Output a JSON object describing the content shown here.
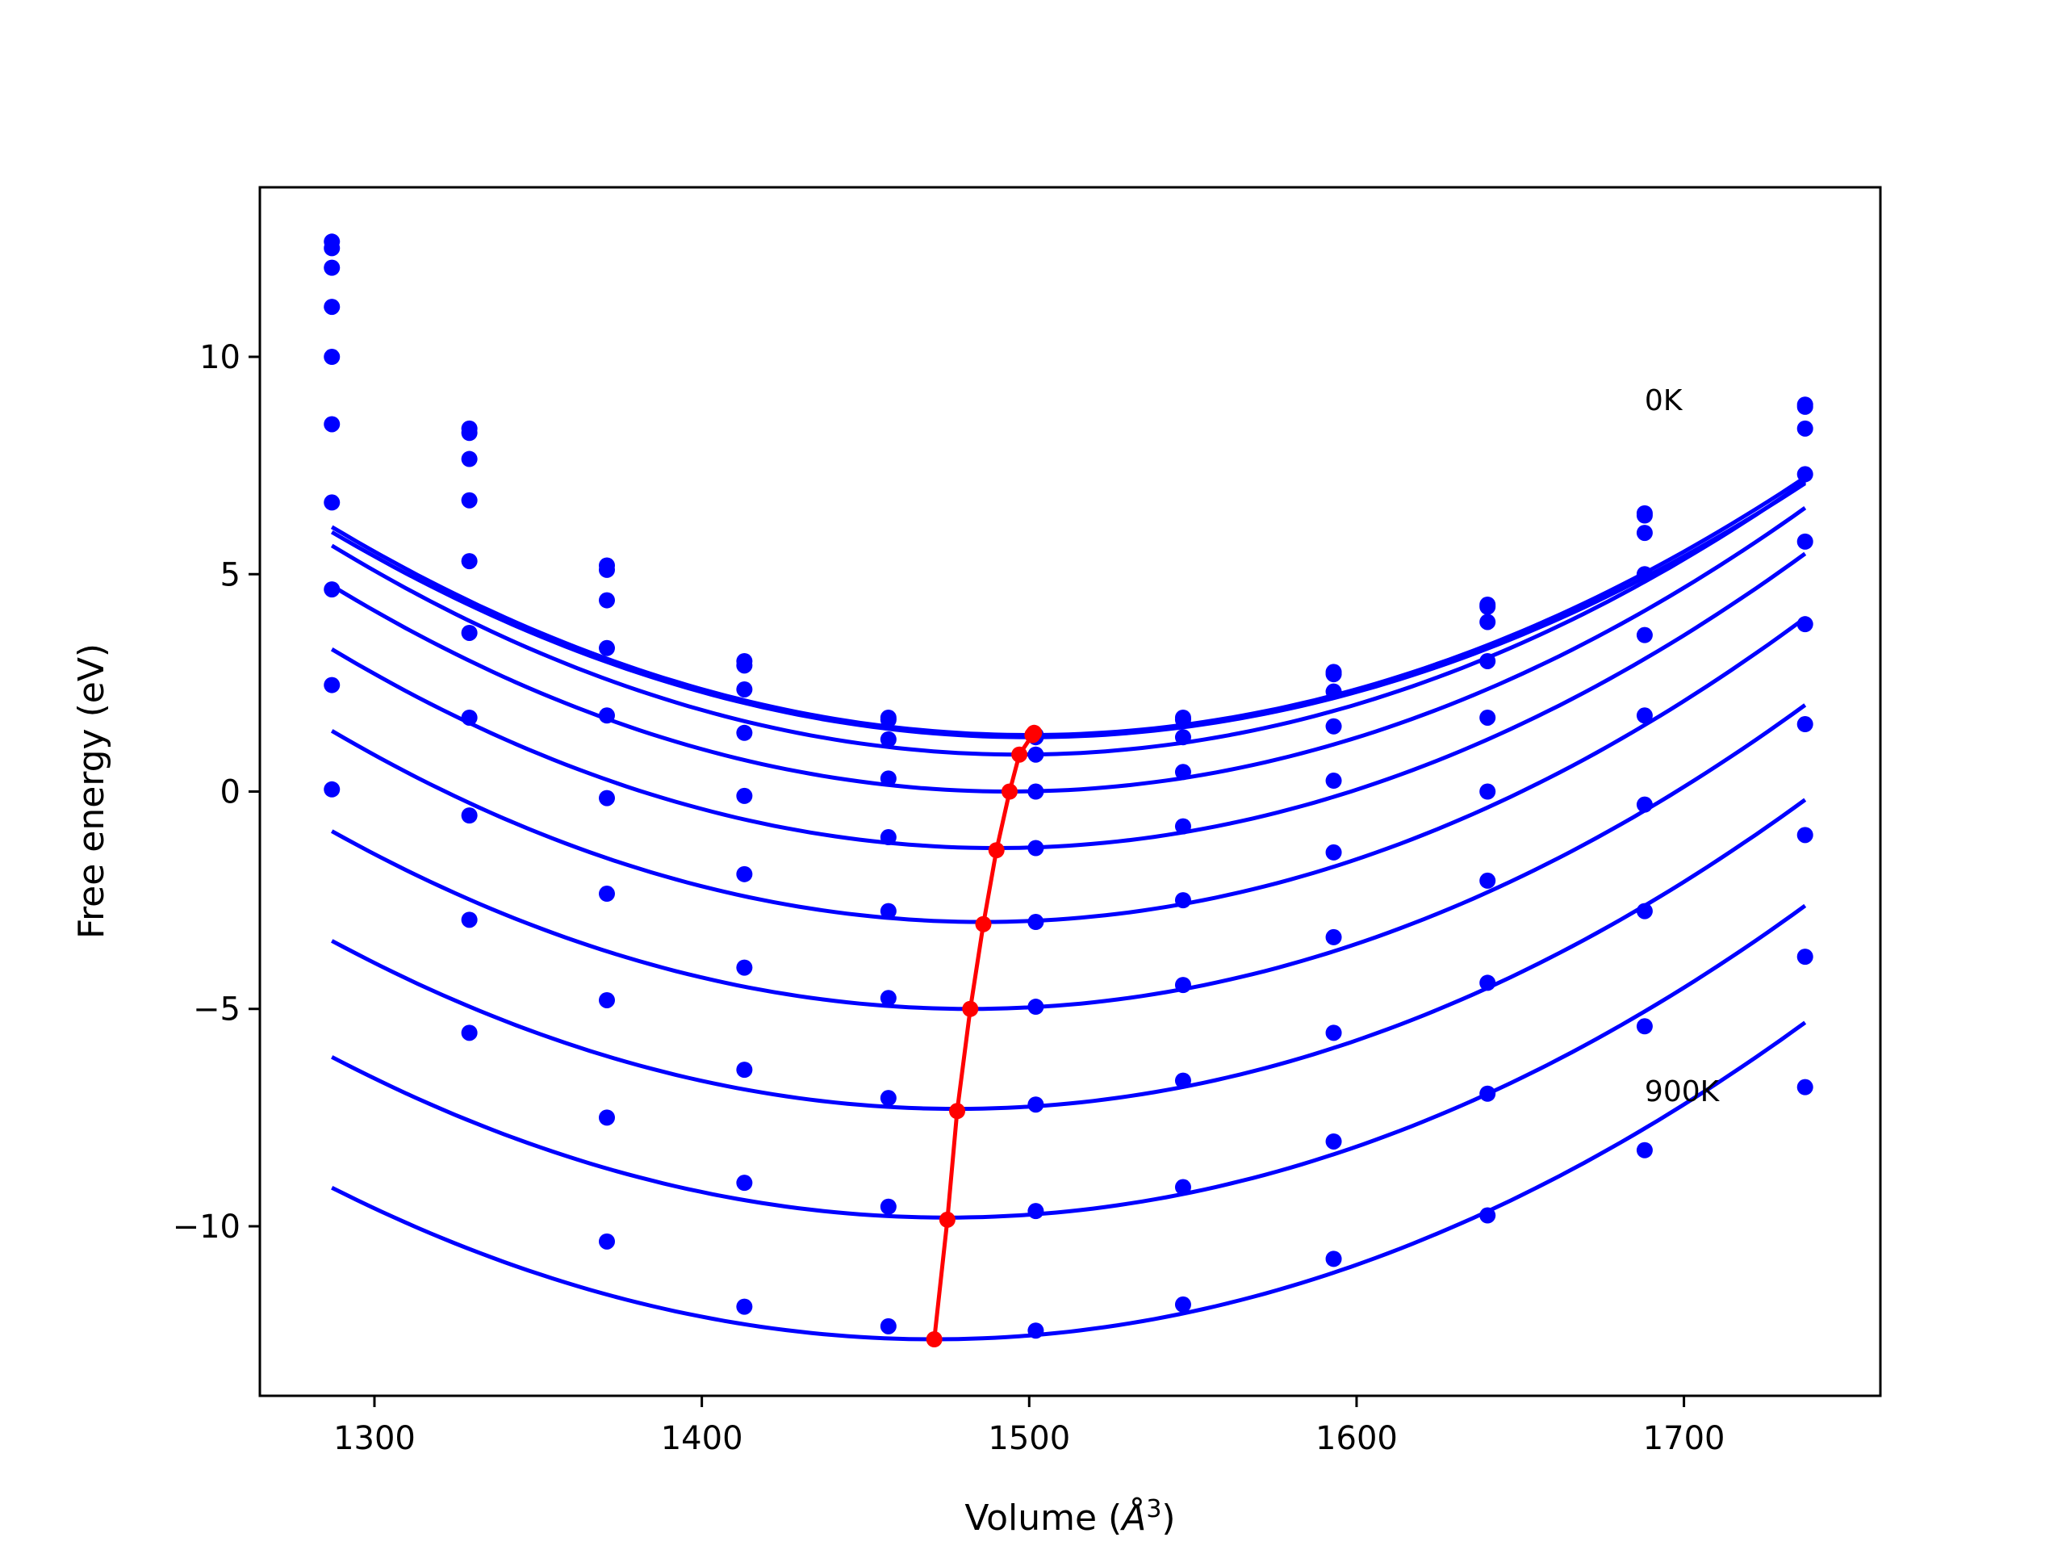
{
  "chart_data": {
    "type": "scatter",
    "xlabel": "Volume (",
    "xlabel_unit": "Å",
    "xlabel_exp": "3",
    "xlabel_close": ")",
    "ylabel": "Free energy (eV)",
    "xlim": [
      1265,
      1760
    ],
    "ylim": [
      -13.9,
      13.9
    ],
    "xticks": [
      1300,
      1400,
      1500,
      1600,
      1700
    ],
    "yticks": [
      10,
      5,
      0,
      -5,
      -10
    ],
    "ytick_labels": [
      "10",
      "5",
      "0",
      "−5",
      "−10"
    ],
    "grid": false,
    "colors": {
      "curves": "#0000ff",
      "minima": "#ff0000"
    },
    "annotations": [
      {
        "text": "0K",
        "x": 1688,
        "y": 9.0
      },
      {
        "text": "900K",
        "x": 1688,
        "y": -6.9
      }
    ],
    "points_x": [
      1287,
      1329,
      1371,
      1413,
      1457,
      1502,
      1547,
      1593,
      1640,
      1688,
      1737
    ],
    "series": [
      {
        "values": [
          12.65,
          8.35,
          5.2,
          3.0,
          1.7,
          1.3,
          1.7,
          2.75,
          4.3,
          6.4,
          8.9
        ],
        "fit": {
          "a": 0.0001055,
          "v0": 1500,
          "c": 1.3
        }
      },
      {
        "values": [
          12.5,
          8.25,
          5.1,
          2.9,
          1.65,
          1.25,
          1.65,
          2.7,
          4.25,
          6.35,
          8.85
        ],
        "fit": {
          "a": 0.000104,
          "v0": 1500,
          "c": 1.25
        }
      },
      {
        "values": [
          12.05,
          7.65,
          4.4,
          2.35,
          1.2,
          0.85,
          1.25,
          2.3,
          3.9,
          5.95,
          8.35
        ],
        "fit": {
          "a": 0.000109,
          "v0": 1497,
          "c": 0.85
        }
      },
      {
        "values": [
          11.15,
          6.7,
          3.3,
          1.35,
          0.3,
          0.0,
          0.45,
          1.5,
          3.0,
          5.0,
          7.3
        ],
        "fit": {
          "a": 0.0001105,
          "v0": 1494,
          "c": 0.0
        }
      },
      {
        "values": [
          10.0,
          5.3,
          1.75,
          -0.1,
          -1.05,
          -1.3,
          -0.8,
          0.25,
          1.7,
          3.6,
          5.75
        ],
        "fit": {
          "a": 0.000111,
          "v0": 1490,
          "c": -1.3
        }
      },
      {
        "values": [
          8.45,
          3.65,
          -0.15,
          -1.9,
          -2.75,
          -3.0,
          -2.5,
          -1.4,
          0.0,
          1.75,
          3.85
        ],
        "fit": {
          "a": 0.000111,
          "v0": 1486,
          "c": -3.0
        }
      },
      {
        "values": [
          6.65,
          1.7,
          -2.35,
          -4.05,
          -4.75,
          -4.95,
          -4.45,
          -3.35,
          -2.05,
          -0.3,
          1.55
        ],
        "fit": {
          "a": 0.0001075,
          "v0": 1482,
          "c": -5.0
        }
      },
      {
        "values": [
          4.65,
          -0.55,
          -4.8,
          -6.4,
          -7.05,
          -7.2,
          -6.65,
          -5.55,
          -4.4,
          -2.75,
          -1.0
        ],
        "fit": {
          "a": 0.000106,
          "v0": 1478,
          "c": -7.3
        }
      },
      {
        "values": [
          2.45,
          -2.95,
          -7.5,
          -9.0,
          -9.55,
          -9.65,
          -9.1,
          -8.05,
          -6.95,
          -5.4,
          -3.8
        ],
        "fit": {
          "a": 0.0001045,
          "v0": 1475,
          "c": -9.8
        }
      },
      {
        "values": [
          0.05,
          -5.55,
          -10.35,
          -11.85,
          -12.3,
          -12.4,
          -11.8,
          -10.75,
          -9.75,
          -8.25,
          -6.8
        ],
        "fit": {
          "a": 0.000103,
          "v0": 1471,
          "c": -12.6
        }
      }
    ],
    "minima": {
      "x": [
        1501.5,
        1501,
        1497,
        1494,
        1490,
        1486,
        1482,
        1478,
        1475,
        1471
      ],
      "y": [
        1.35,
        1.3,
        0.85,
        0.0,
        -1.35,
        -3.05,
        -5.0,
        -7.35,
        -9.85,
        -12.6
      ]
    }
  }
}
